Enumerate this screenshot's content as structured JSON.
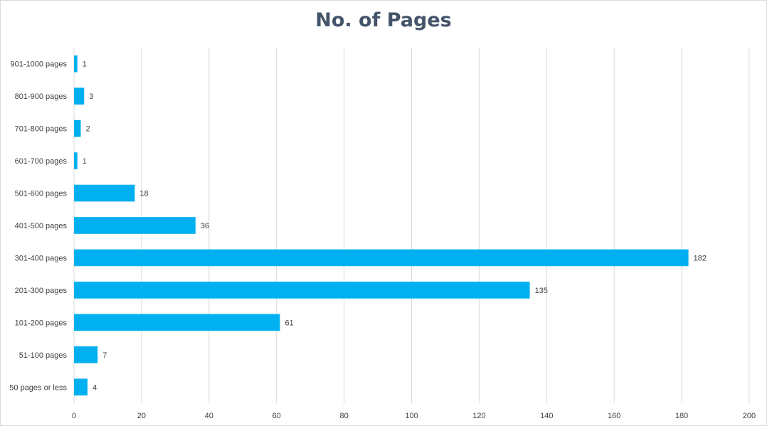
{
  "chart_data": {
    "type": "bar",
    "orientation": "horizontal",
    "title": "No. of Pages",
    "categories": [
      "50 pages or less",
      "51-100 pages",
      "101-200 pages",
      "201-300 pages",
      "301-400 pages",
      "401-500 pages",
      "501-600 pages",
      "601-700 pages",
      "701-800 pages",
      "801-900 pages",
      "901-1000 pages"
    ],
    "values": [
      4,
      7,
      61,
      135,
      182,
      36,
      18,
      1,
      2,
      3,
      1
    ],
    "xlim": [
      0,
      200
    ],
    "xticks": [
      0,
      20,
      40,
      60,
      80,
      100,
      120,
      140,
      160,
      180,
      200
    ],
    "grid": true,
    "bar_color": "#00b0f0",
    "data_labels": true
  }
}
